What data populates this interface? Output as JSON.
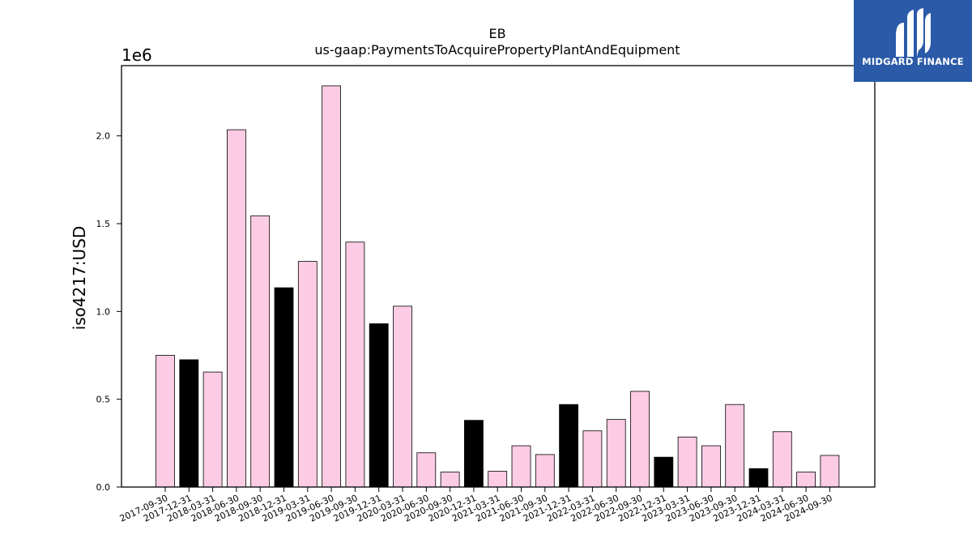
{
  "brand": {
    "name": "MIDGARD FINANCE",
    "color": "#2a5aa8"
  },
  "chart_data": {
    "type": "bar",
    "title": "EB",
    "subtitle": "us-gaap:PaymentsToAcquirePropertyPlantAndEquipment",
    "ylabel": "iso4217:USD",
    "xlabel": "",
    "scale_label": "1e6",
    "ylim": [
      0,
      2400000
    ],
    "yticks": [
      0,
      500000,
      1000000,
      1500000,
      2000000
    ],
    "ytick_labels": [
      "0.0",
      "0.5",
      "1.0",
      "1.5",
      "2.0"
    ],
    "grid": false,
    "colors": {
      "quarter": "#fccbe4",
      "year_end": "#000000",
      "edge": "#000000"
    },
    "categories": [
      "2017-09-30",
      "2017-12-31",
      "2018-03-31",
      "2018-06-30",
      "2018-09-30",
      "2018-12-31",
      "2019-03-31",
      "2019-06-30",
      "2019-09-30",
      "2019-12-31",
      "2020-03-31",
      "2020-06-30",
      "2020-09-30",
      "2020-12-31",
      "2021-03-31",
      "2021-06-30",
      "2021-09-30",
      "2021-12-31",
      "2022-03-31",
      "2022-06-30",
      "2022-09-30",
      "2022-12-31",
      "2023-03-31",
      "2023-06-30",
      "2023-09-30",
      "2023-12-31",
      "2024-03-31",
      "2024-06-30",
      "2024-09-30"
    ],
    "values": [
      750000,
      725000,
      655000,
      2035000,
      1545000,
      1135000,
      1285000,
      2285000,
      1395000,
      930000,
      1030000,
      195000,
      85000,
      380000,
      90000,
      235000,
      185000,
      470000,
      320000,
      385000,
      545000,
      170000,
      285000,
      235000,
      470000,
      105000,
      315000,
      85000,
      180000
    ],
    "highlight": [
      false,
      true,
      false,
      false,
      false,
      true,
      false,
      false,
      false,
      true,
      false,
      false,
      false,
      true,
      false,
      false,
      false,
      true,
      false,
      false,
      false,
      true,
      false,
      false,
      false,
      true,
      false,
      false,
      false
    ]
  }
}
